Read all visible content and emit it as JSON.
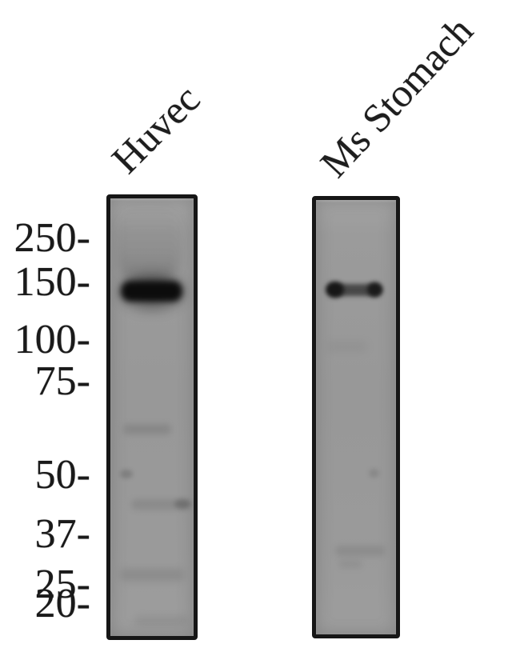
{
  "figure": {
    "kind": "western-blot",
    "colors": {
      "background": "#ffffff",
      "lane_fill": "#9a9a9a",
      "lane_border": "#161616",
      "strong_band": "#0c0c0c",
      "text": "#1a1a1a"
    },
    "lane_labels": [
      {
        "text": "Huvec"
      },
      {
        "text": "Ms Stomach"
      }
    ],
    "mw_markers": [
      {
        "label": "250-"
      },
      {
        "label": "150-"
      },
      {
        "label": "100-"
      },
      {
        "label": "75-"
      },
      {
        "label": "50-"
      },
      {
        "label": "37-"
      },
      {
        "label": "25-"
      },
      {
        "label": "20-"
      }
    ],
    "lanes": [
      {
        "name": "Huvec",
        "main_band": {
          "approx_kda": "~140",
          "intensity": "strong"
        },
        "faint_bands_approx_kda": [
          "~60",
          "~50",
          "~43",
          "~25",
          "~21"
        ]
      },
      {
        "name": "Ms Stomach",
        "main_band": {
          "approx_kda": "~140",
          "intensity": "moderate"
        },
        "faint_bands_approx_kda": [
          "~50",
          "~30"
        ]
      }
    ]
  }
}
